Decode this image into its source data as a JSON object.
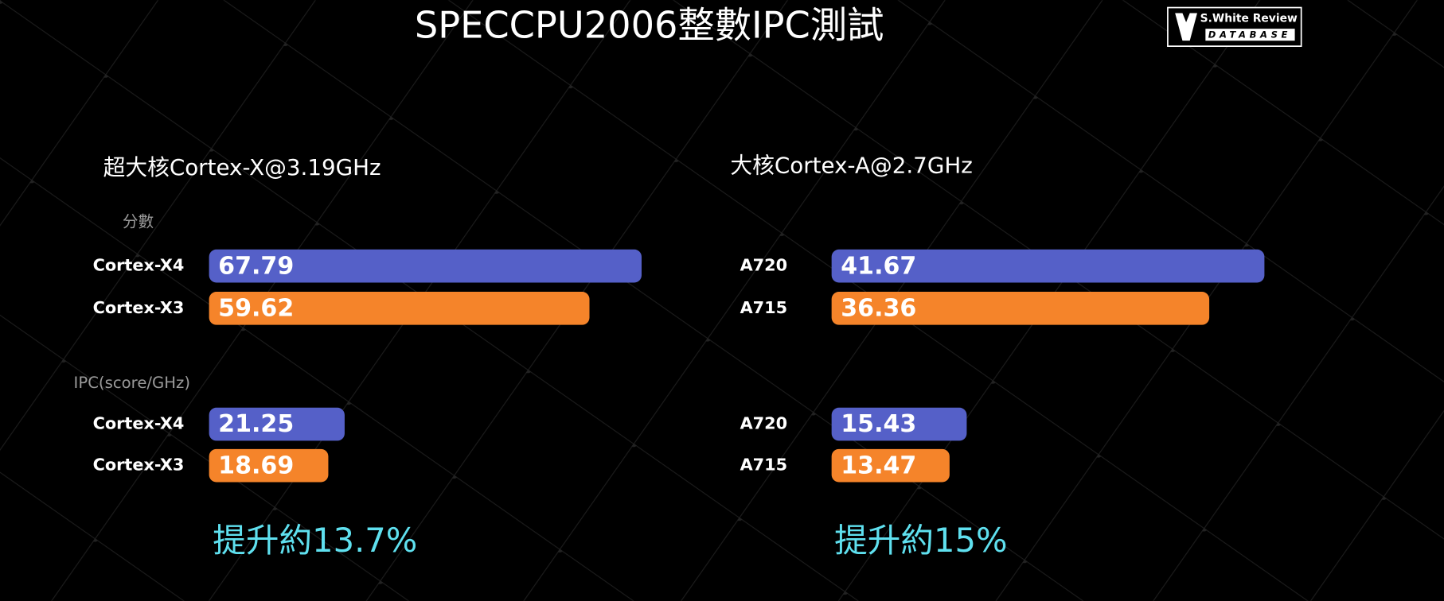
{
  "page_title": "SPECCPU2006整數IPC測試",
  "logo": {
    "name": "S.White Review",
    "sub": "DATABASE"
  },
  "chart_data": [
    {
      "type": "bar",
      "orientation": "horizontal",
      "title": "超大核Cortex-X@3.19GHz",
      "label": "分數",
      "categories": [
        "Cortex-X4",
        "Cortex-X3"
      ],
      "values": [
        67.79,
        59.62
      ],
      "colors": [
        "#5560c8",
        "#f5842a"
      ],
      "xlim": [
        0,
        70
      ]
    },
    {
      "type": "bar",
      "orientation": "horizontal",
      "label": "IPC(score/GHz)",
      "categories": [
        "Cortex-X4",
        "Cortex-X3"
      ],
      "values": [
        21.25,
        18.69
      ],
      "colors": [
        "#5560c8",
        "#f5842a"
      ],
      "xlim": [
        0,
        70
      ],
      "annotation": "提升約13.7%"
    },
    {
      "type": "bar",
      "orientation": "horizontal",
      "title": "大核Cortex-A@2.7GHz",
      "categories": [
        "A720",
        "A715"
      ],
      "values": [
        41.67,
        36.36
      ],
      "colors": [
        "#5560c8",
        "#f5842a"
      ],
      "xlim": [
        0,
        43
      ]
    },
    {
      "type": "bar",
      "orientation": "horizontal",
      "categories": [
        "A720",
        "A715"
      ],
      "values": [
        15.43,
        13.47
      ],
      "colors": [
        "#5560c8",
        "#f5842a"
      ],
      "xlim": [
        0,
        51
      ],
      "annotation": "提升約15%"
    }
  ]
}
